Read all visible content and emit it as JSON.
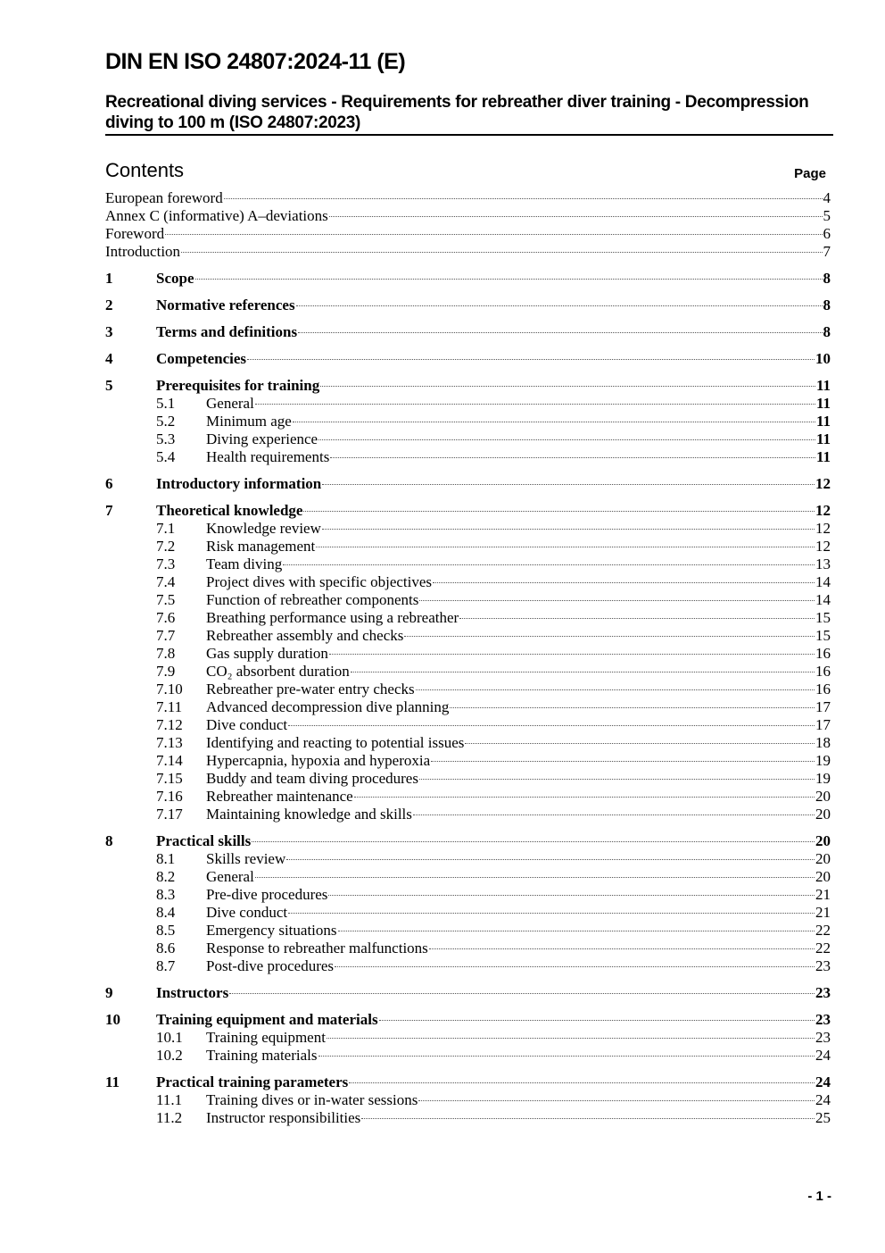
{
  "header": {
    "title": "DIN EN ISO 24807:2024-11 (E)",
    "subtitle": "Recreational diving services - Requirements for rebreather diver training - Decompression diving to 100 m (ISO 24807:2023)"
  },
  "contents": {
    "heading": "Contents",
    "page_label": "Page",
    "entries": [
      {
        "level": 0,
        "num": "",
        "title": "European foreword",
        "page": "4"
      },
      {
        "level": 0,
        "num": "",
        "title": "Annex C (informative) A–deviations",
        "page": "5"
      },
      {
        "level": 0,
        "num": "",
        "title": "Foreword",
        "page": "6"
      },
      {
        "level": 0,
        "num": "",
        "title": "Introduction",
        "page": "7"
      },
      {
        "level": 1,
        "num": "1",
        "title": "Scope",
        "page": "8"
      },
      {
        "level": 1,
        "num": "2",
        "title": "Normative references",
        "page": "8"
      },
      {
        "level": 1,
        "num": "3",
        "title": "Terms and definitions",
        "page": "8"
      },
      {
        "level": 1,
        "num": "4",
        "title": "Competencies",
        "page": "10"
      },
      {
        "level": 1,
        "num": "5",
        "title": "Prerequisites for training",
        "page": "11"
      },
      {
        "level": 2,
        "num": "5.1",
        "title": "General",
        "page": "11",
        "bold_page": true
      },
      {
        "level": 2,
        "num": "5.2",
        "title": "Minimum age",
        "page": "11",
        "bold_page": true
      },
      {
        "level": 2,
        "num": "5.3",
        "title": "Diving experience",
        "page": "11",
        "bold_page": true
      },
      {
        "level": 2,
        "num": "5.4",
        "title": "Health requirements",
        "page": "11",
        "bold_page": true
      },
      {
        "level": 1,
        "num": "6",
        "title": "Introductory information",
        "page": "12"
      },
      {
        "level": 1,
        "num": "7",
        "title": "Theoretical knowledge",
        "page": "12"
      },
      {
        "level": 2,
        "num": "7.1",
        "title": "Knowledge review",
        "page": "12"
      },
      {
        "level": 2,
        "num": "7.2",
        "title": "Risk management",
        "page": "12"
      },
      {
        "level": 2,
        "num": "7.3",
        "title": "Team diving",
        "page": "13"
      },
      {
        "level": 2,
        "num": "7.4",
        "title": "Project dives with specific objectives",
        "page": "14"
      },
      {
        "level": 2,
        "num": "7.5",
        "title": "Function of rebreather components",
        "page": "14"
      },
      {
        "level": 2,
        "num": "7.6",
        "title": "Breathing performance using a rebreather",
        "page": "15"
      },
      {
        "level": 2,
        "num": "7.7",
        "title": "Rebreather assembly and checks",
        "page": "15"
      },
      {
        "level": 2,
        "num": "7.8",
        "title": "Gas supply duration",
        "page": "16"
      },
      {
        "level": 2,
        "num": "7.9",
        "title": "CO₂ absorbent duration",
        "page": "16"
      },
      {
        "level": 2,
        "num": "7.10",
        "title": "Rebreather pre-water entry checks",
        "page": "16"
      },
      {
        "level": 2,
        "num": "7.11",
        "title": "Advanced decompression dive planning",
        "page": "17"
      },
      {
        "level": 2,
        "num": "7.12",
        "title": "Dive conduct",
        "page": "17"
      },
      {
        "level": 2,
        "num": "7.13",
        "title": "Identifying and reacting to potential issues",
        "page": "18"
      },
      {
        "level": 2,
        "num": "7.14",
        "title": "Hypercapnia, hypoxia and hyperoxia",
        "page": "19"
      },
      {
        "level": 2,
        "num": "7.15",
        "title": "Buddy and team diving procedures",
        "page": "19"
      },
      {
        "level": 2,
        "num": "7.16",
        "title": "Rebreather maintenance",
        "page": "20"
      },
      {
        "level": 2,
        "num": "7.17",
        "title": "Maintaining knowledge and skills",
        "page": "20"
      },
      {
        "level": 1,
        "num": "8",
        "title": "Practical skills",
        "page": "20"
      },
      {
        "level": 2,
        "num": "8.1",
        "title": "Skills review",
        "page": "20"
      },
      {
        "level": 2,
        "num": "8.2",
        "title": "General",
        "page": "20"
      },
      {
        "level": 2,
        "num": "8.3",
        "title": "Pre-dive procedures",
        "page": "21"
      },
      {
        "level": 2,
        "num": "8.4",
        "title": "Dive conduct",
        "page": "21"
      },
      {
        "level": 2,
        "num": "8.5",
        "title": "Emergency situations",
        "page": "22"
      },
      {
        "level": 2,
        "num": "8.6",
        "title": "Response to rebreather malfunctions",
        "page": "22"
      },
      {
        "level": 2,
        "num": "8.7",
        "title": "Post-dive procedures",
        "page": "23"
      },
      {
        "level": 1,
        "num": "9",
        "title": "Instructors",
        "page": "23"
      },
      {
        "level": 1,
        "num": "10",
        "title": "Training equipment and materials",
        "page": "23"
      },
      {
        "level": 2,
        "num": "10.1",
        "title": "Training equipment",
        "page": "23"
      },
      {
        "level": 2,
        "num": "10.2",
        "title": "Training materials",
        "page": "24"
      },
      {
        "level": 1,
        "num": "11",
        "title": "Practical training parameters",
        "page": "24"
      },
      {
        "level": 2,
        "num": "11.1",
        "title": "Training dives or in-water sessions",
        "page": "24"
      },
      {
        "level": 2,
        "num": "11.2",
        "title": "Instructor responsibilities",
        "page": "25"
      }
    ]
  },
  "footer": {
    "page_number": "- 1 -"
  }
}
